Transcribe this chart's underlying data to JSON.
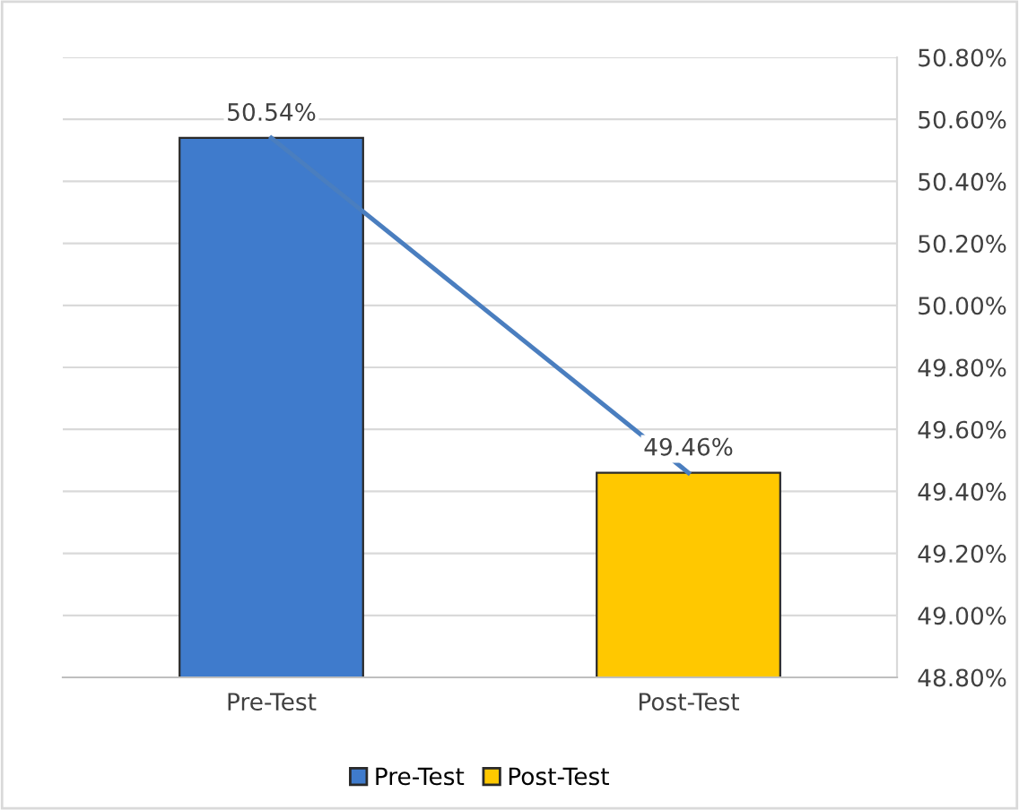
{
  "chart_data": {
    "type": "bar",
    "categories": [
      "Pre-Test",
      "Post-Test"
    ],
    "series": [
      {
        "type": "bar",
        "name": "Pre-Test",
        "values": [
          50.54,
          null
        ],
        "color": "#3f7bcc",
        "value_labels": [
          "50.54%",
          null
        ]
      },
      {
        "type": "bar",
        "name": "Post-Test",
        "values": [
          null,
          49.46
        ],
        "color": "#ffc800",
        "value_labels": [
          null,
          "49.46%"
        ]
      },
      {
        "type": "line",
        "values": [
          50.54,
          49.46
        ],
        "color": "#4a7ebf"
      }
    ],
    "ylim": [
      48.8,
      50.8
    ],
    "yticks": [
      {
        "value": 48.8,
        "label": "48.80%"
      },
      {
        "value": 49.0,
        "label": "49.00%"
      },
      {
        "value": 49.2,
        "label": "49.20%"
      },
      {
        "value": 49.4,
        "label": "49.40%"
      },
      {
        "value": 49.6,
        "label": "49.60%"
      },
      {
        "value": 49.8,
        "label": "49.80%"
      },
      {
        "value": 50.0,
        "label": "50.00%"
      },
      {
        "value": 50.2,
        "label": "50.20%"
      },
      {
        "value": 50.4,
        "label": "50.40%"
      },
      {
        "value": 50.6,
        "label": "50.60%"
      },
      {
        "value": 50.8,
        "label": "50.80%"
      }
    ],
    "grid": "y",
    "legend": "bottom",
    "marker": "none"
  }
}
